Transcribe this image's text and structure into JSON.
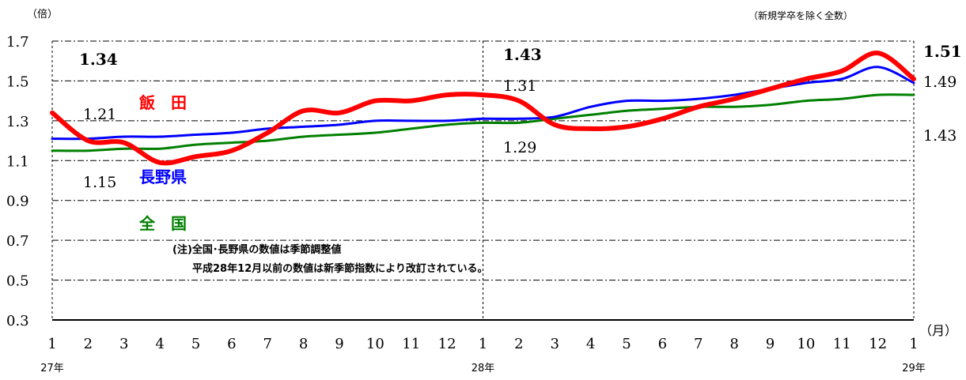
{
  "chart_data": {
    "type": "line",
    "y_unit_label": "（倍）",
    "note_top_right": "（新規学卒を除く全数）",
    "x_unit_label": "（月）",
    "ylim": [
      0.3,
      1.7
    ],
    "y_ticks": [
      "0.3",
      "0.5",
      "0.7",
      "0.9",
      "1.1",
      "1.3",
      "1.5",
      "1.7"
    ],
    "categories": [
      "1",
      "2",
      "3",
      "4",
      "5",
      "6",
      "7",
      "8",
      "9",
      "10",
      "11",
      "12",
      "1",
      "2",
      "3",
      "4",
      "5",
      "6",
      "7",
      "8",
      "9",
      "10",
      "11",
      "12",
      "1"
    ],
    "year_labels": [
      {
        "index": 0,
        "text": "27年"
      },
      {
        "index": 12,
        "text": "28年"
      },
      {
        "index": 24,
        "text": "29年"
      }
    ],
    "grid": true,
    "series": [
      {
        "name": "飯　田",
        "color": "#ff0000",
        "values": [
          1.34,
          1.2,
          1.19,
          1.09,
          1.12,
          1.15,
          1.24,
          1.35,
          1.34,
          1.4,
          1.4,
          1.43,
          1.43,
          1.4,
          1.28,
          1.26,
          1.27,
          1.31,
          1.37,
          1.41,
          1.46,
          1.51,
          1.55,
          1.64,
          1.51
        ]
      },
      {
        "name": "長野県",
        "color": "#0000ff",
        "values": [
          1.21,
          1.21,
          1.22,
          1.22,
          1.23,
          1.24,
          1.26,
          1.27,
          1.28,
          1.3,
          1.3,
          1.3,
          1.31,
          1.31,
          1.32,
          1.37,
          1.4,
          1.4,
          1.41,
          1.43,
          1.46,
          1.49,
          1.51,
          1.57,
          1.49
        ]
      },
      {
        "name": "全　国",
        "color": "#008000",
        "values": [
          1.15,
          1.15,
          1.16,
          1.16,
          1.18,
          1.19,
          1.2,
          1.22,
          1.23,
          1.24,
          1.26,
          1.28,
          1.29,
          1.29,
          1.31,
          1.33,
          1.35,
          1.36,
          1.37,
          1.37,
          1.38,
          1.4,
          1.41,
          1.43,
          1.43
        ]
      }
    ],
    "value_labels": [
      {
        "text": "1.34",
        "series": 0,
        "index": 0,
        "bold": true
      },
      {
        "text": "1.21",
        "series": 1,
        "index": 0
      },
      {
        "text": "1.15",
        "series": 2,
        "index": 0
      },
      {
        "text": "1.43",
        "series": 0,
        "index": 12,
        "bold": true
      },
      {
        "text": "1.31",
        "series": 1,
        "index": 12
      },
      {
        "text": "1.29",
        "series": 2,
        "index": 12
      },
      {
        "text": "1.51",
        "series": 0,
        "index": 24,
        "bold": true
      },
      {
        "text": "1.49",
        "series": 1,
        "index": 24
      },
      {
        "text": "1.43",
        "series": 2,
        "index": 24
      }
    ],
    "annotations": [
      "(注)全国･長野県の数値は季節調整値",
      "平成28年12月以前の数値は新季節指数により改訂されている。"
    ]
  }
}
